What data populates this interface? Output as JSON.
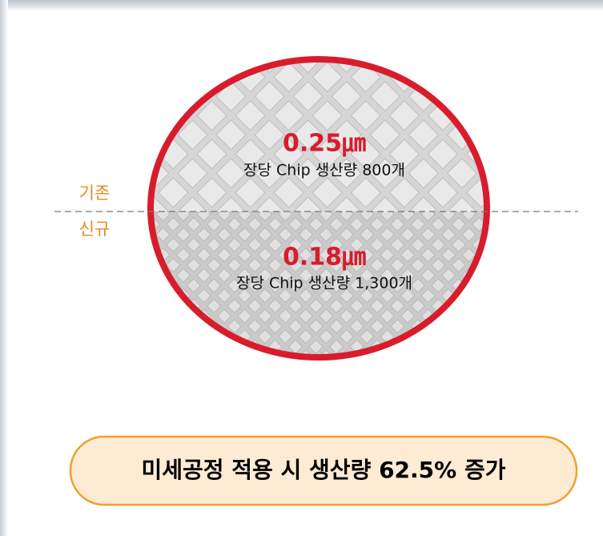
{
  "wafer": {
    "old": {
      "label": "기존",
      "size": "0.25㎛",
      "yield": "장당 Chip 생산량 800개"
    },
    "new": {
      "label": "신규",
      "size": "0.18㎛",
      "yield": "장당 Chip 생산량 1,300개"
    }
  },
  "summary": "미세공정 적용 시 생산량 62.5% 증가"
}
